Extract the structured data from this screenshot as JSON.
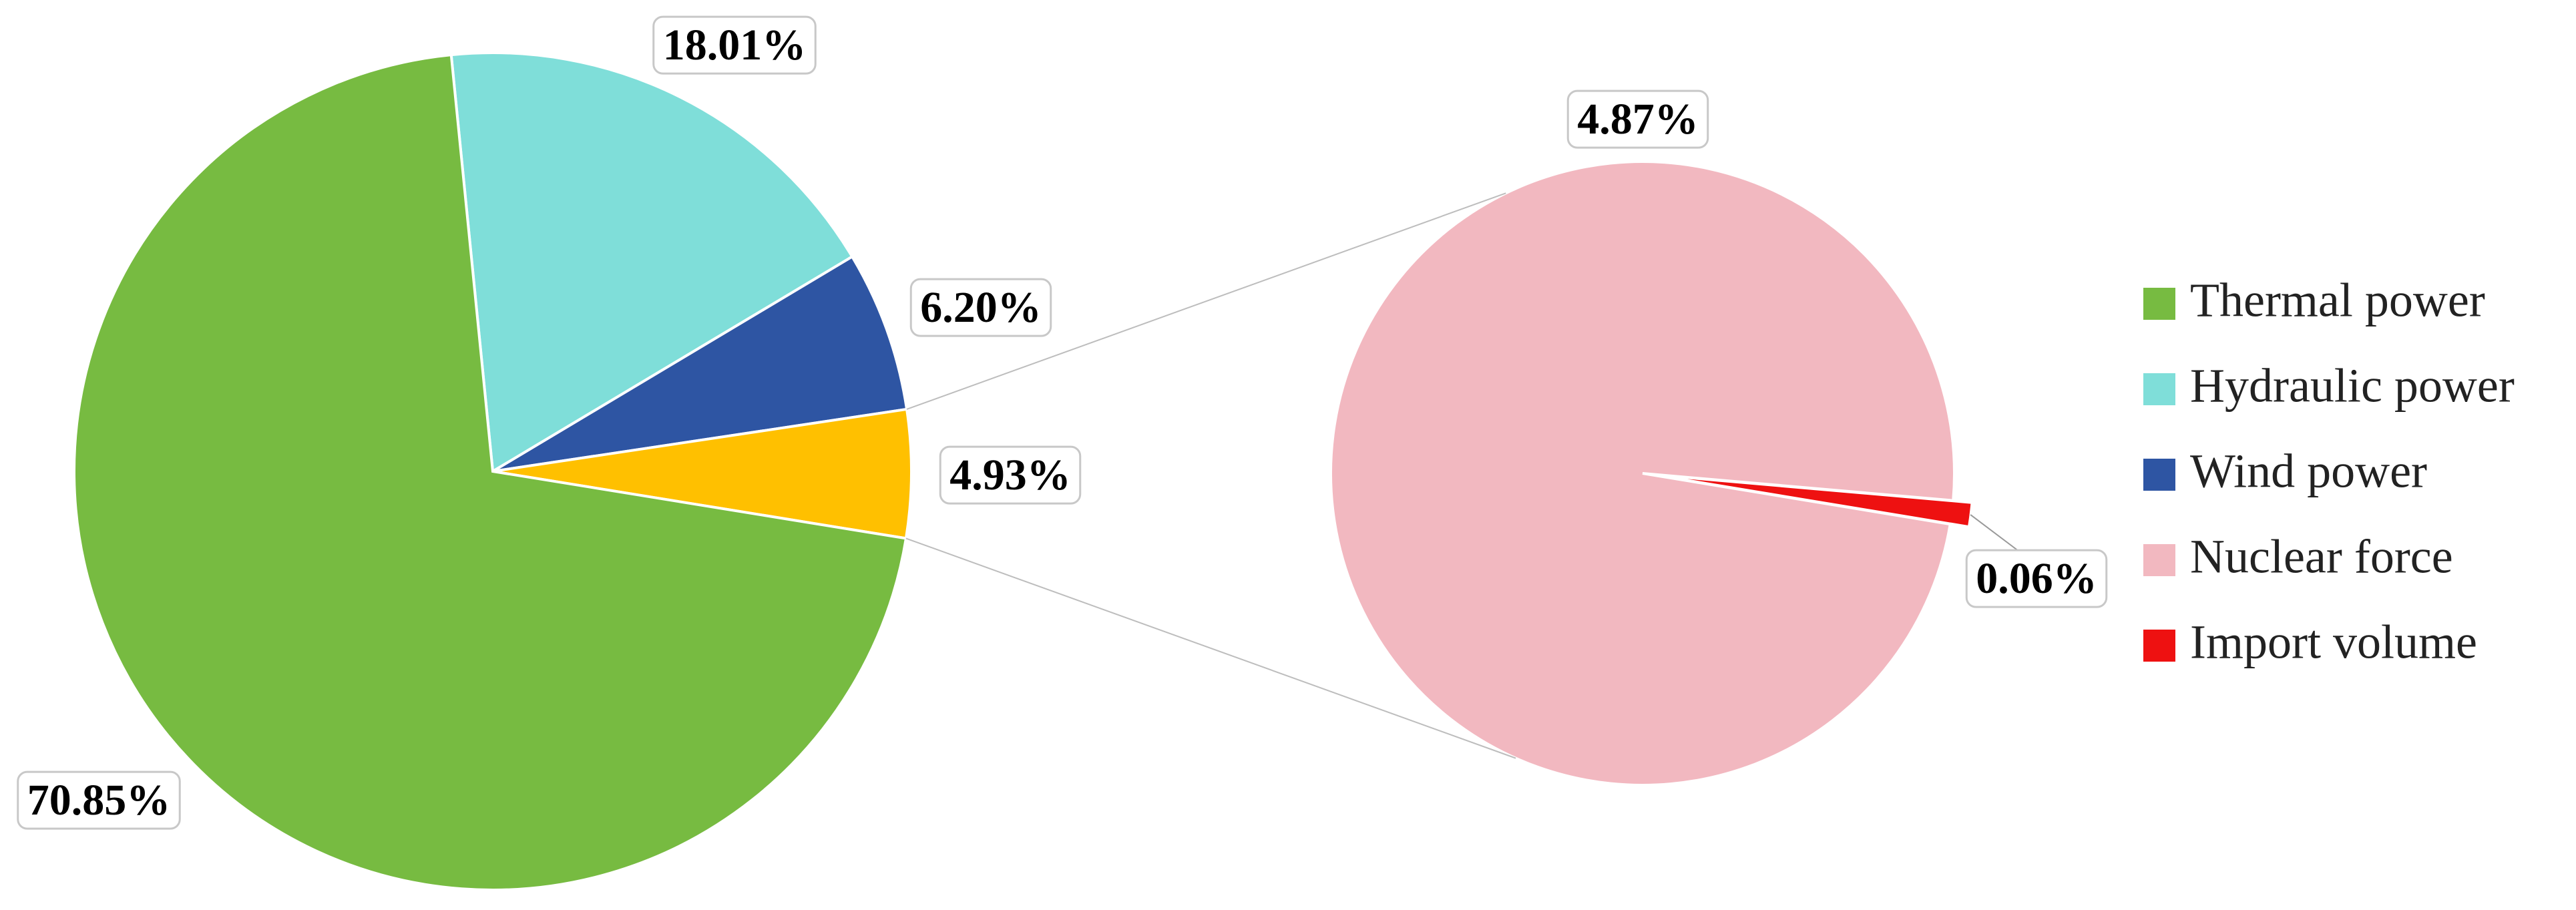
{
  "chart_data": {
    "type": "pie-of-pie",
    "categories": [
      "Thermal power",
      "Hydraulic power",
      "Wind power",
      "Nuclear force",
      "Import volume"
    ],
    "values": [
      70.85,
      18.01,
      6.2,
      4.87,
      0.06
    ],
    "value_labels": [
      "70.85%",
      "18.01%",
      "6.20%",
      "4.87%",
      "0.06%"
    ],
    "colors": [
      "#77bb41",
      "#7fded9",
      "#2e55a3",
      "#f2b8c0",
      "#ee1111"
    ],
    "secondary": {
      "value": 4.93,
      "value_label": "4.93%",
      "color": "#ffc000"
    },
    "legend": "right"
  }
}
